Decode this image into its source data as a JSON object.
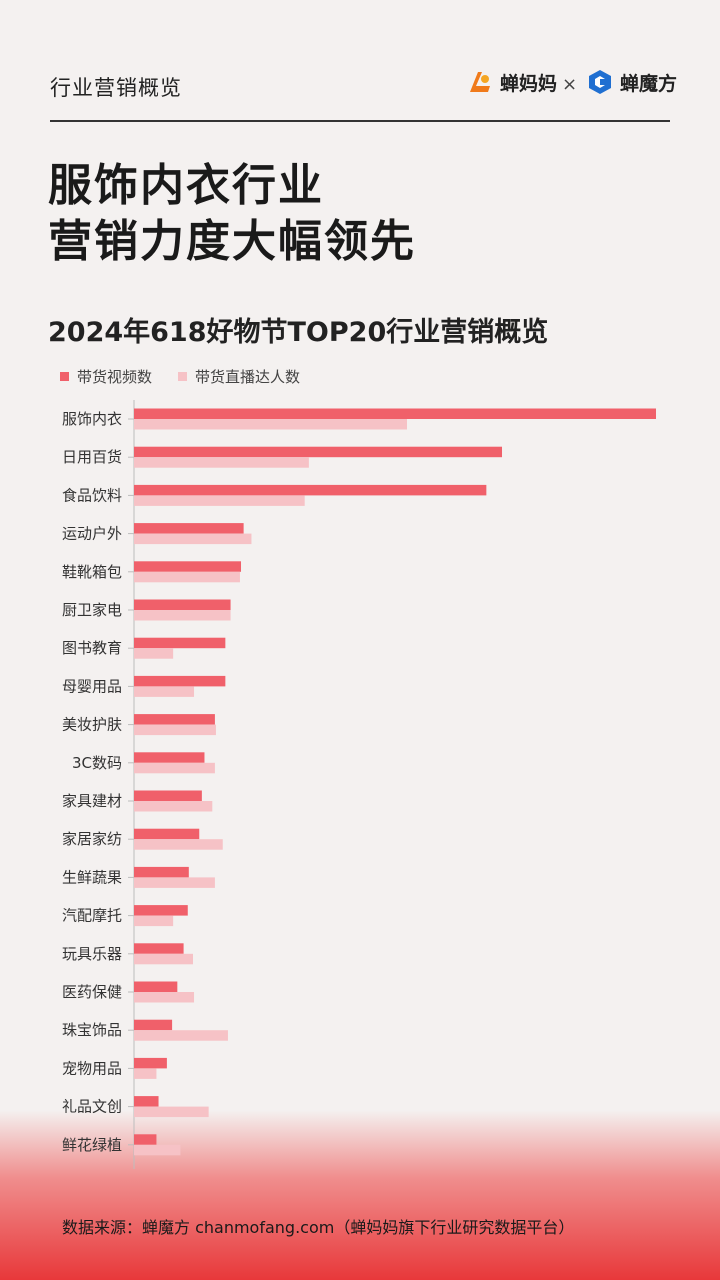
{
  "header": {
    "section_label": "行业营销概览",
    "brand_left": "蝉妈妈",
    "separator": "×",
    "brand_right": "蝉魔方"
  },
  "title_line1": "服饰内衣行业",
  "title_line2": "营销力度大幅领先",
  "colors": {
    "video": "#f0606a",
    "influencer": "#f6c2c6",
    "axis": "#bdbdbd"
  },
  "chart_data": {
    "type": "bar",
    "orientation": "horizontal",
    "title": "2024年618好物节TOP20行业营销概览",
    "categories": [
      "服饰内衣",
      "日用百货",
      "食品饮料",
      "运动户外",
      "鞋靴箱包",
      "厨卫家电",
      "图书教育",
      "母婴用品",
      "美妆护肤",
      "3C数码",
      "家具建材",
      "家居家纺",
      "生鲜蔬果",
      "汽配摩托",
      "玩具乐器",
      "医药保健",
      "珠宝饰品",
      "宠物用品",
      "礼品文创",
      "鲜花绿植"
    ],
    "series": [
      {
        "name": "带货视频数",
        "values": [
          100,
          70.5,
          67.5,
          21,
          20.5,
          18.5,
          17.5,
          17.5,
          15.5,
          13.5,
          13,
          12.5,
          10.5,
          10.3,
          9.5,
          8.3,
          7.3,
          6.3,
          4.7,
          4.3
        ]
      },
      {
        "name": "带货直播达人数",
        "values": [
          52.3,
          33.5,
          32.7,
          22.5,
          20.3,
          18.5,
          7.5,
          11.5,
          15.7,
          15.5,
          15,
          17,
          15.5,
          7.5,
          11.3,
          11.5,
          18,
          4.3,
          14.3,
          8.9
        ]
      }
    ],
    "legend_position": "top-left",
    "grid": false
  },
  "footer": {
    "source": "数据来源：蝉魔方 chanmofang.com（蝉妈妈旗下行业研究数据平台）"
  }
}
